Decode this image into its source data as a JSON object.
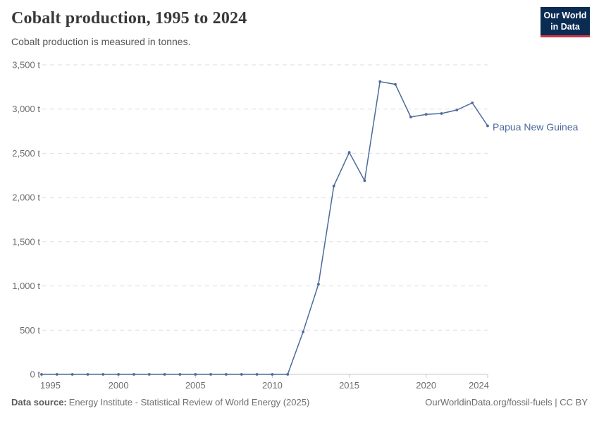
{
  "header": {
    "title": "Cobalt production, 1995 to 2024",
    "subtitle": "Cobalt production is measured in tonnes.",
    "logo": {
      "line1": "Our World",
      "line2": "in Data"
    }
  },
  "chart_data": {
    "type": "line",
    "title": "Cobalt production, 1995 to 2024",
    "unit": "tonnes",
    "x": [
      1995,
      1996,
      1997,
      1998,
      1999,
      2000,
      2001,
      2002,
      2003,
      2004,
      2005,
      2006,
      2007,
      2008,
      2009,
      2010,
      2011,
      2012,
      2013,
      2014,
      2015,
      2016,
      2017,
      2018,
      2019,
      2020,
      2021,
      2022,
      2023,
      2024
    ],
    "series": [
      {
        "name": "Papua New Guinea",
        "color": "#4c6a9c",
        "values": [
          0,
          0,
          0,
          0,
          0,
          0,
          0,
          0,
          0,
          0,
          0,
          0,
          0,
          0,
          0,
          0,
          0,
          480,
          1020,
          2130,
          2510,
          2190,
          3310,
          3280,
          2910,
          2940,
          2950,
          2990,
          3070,
          2810
        ]
      }
    ],
    "x_ticks": [
      1995,
      2000,
      2005,
      2010,
      2015,
      2020,
      2024
    ],
    "y_ticks": [
      0,
      500,
      1000,
      1500,
      2000,
      2500,
      3000,
      3500
    ],
    "y_tick_suffix": " t",
    "xlim": [
      1995,
      2024
    ],
    "ylim": [
      0,
      3500
    ],
    "grid": "horizontal-dashed",
    "legend_position": "end-of-line-label",
    "markers": true
  },
  "footer": {
    "source_label": "Data source:",
    "source_text": "Energy Institute - Statistical Review of World Energy (2025)",
    "rights": "OurWorldinData.org/fossil-fuels | CC BY"
  },
  "colors": {
    "accent_line": "#4c6a9c",
    "logo_navy": "#0a2b52",
    "logo_red": "#d73246",
    "grid": "#dddddd",
    "axis": "#c8c8c8",
    "tick_text": "#6e6e6e"
  }
}
